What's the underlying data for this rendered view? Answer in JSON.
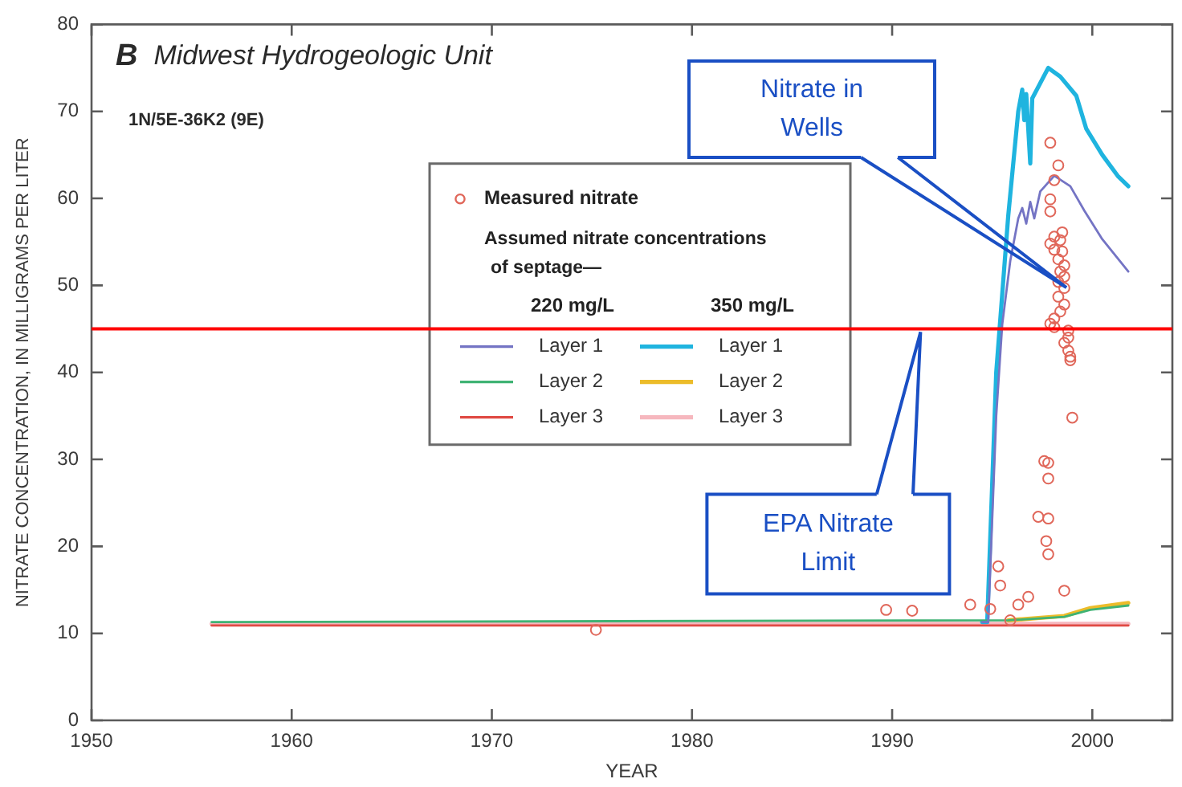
{
  "chart_data": {
    "type": "line",
    "title": "B Midwest Hydrogeologic Unit",
    "subtitle": "1N/5E-36K2 (9E)",
    "xlabel": "YEAR",
    "ylabel": "NITRATE CONCENTRATION, IN MILLIGRAMS PER LITER",
    "legend": "top",
    "legend_title": "Assumed nitrate concentrations of septage—",
    "annotations": [
      "220 mg/L",
      "350 mg/L",
      "Nitrate in Wells",
      "EPA Nitrate Limit"
    ],
    "xlim": [
      1950,
      2004
    ],
    "xticks": [
      1950,
      1960,
      1970,
      1980,
      1990,
      2000
    ],
    "ylim": [
      0,
      80
    ],
    "yticks": [
      0,
      10,
      20,
      30,
      40,
      50,
      60,
      70,
      80
    ],
    "ref_lines": [
      {
        "axis": "y",
        "value": 45,
        "color": "#ff0000"
      }
    ],
    "series": [
      {
        "name": "Measured nitrate",
        "type": "scatter",
        "marker": "circle",
        "color": "#e0675a",
        "x": [
          1975.2,
          1989.7,
          1991.0,
          1993.9,
          1994.9,
          1995.3,
          1995.4,
          1995.9,
          1996.3,
          1996.8,
          1998.6,
          1997.6,
          1997.8,
          1997.8,
          1997.3,
          1997.8,
          1997.7,
          1997.8,
          1999.0,
          1998.9,
          1997.9,
          1998.3,
          1998.1,
          1997.9,
          1997.9,
          1998.5,
          1998.1,
          1997.9,
          1998.4,
          1998.1,
          1998.5,
          1998.3,
          1998.6,
          1998.4,
          1998.6,
          1998.3,
          1998.6,
          1998.3,
          1998.6,
          1998.4,
          1998.1,
          1997.9,
          1998.1,
          1998.8,
          1998.8,
          1998.6,
          1998.8,
          1998.9
        ],
        "values": [
          10.4,
          12.7,
          12.6,
          13.3,
          12.8,
          17.7,
          15.5,
          11.5,
          13.3,
          14.2,
          14.9,
          29.8,
          29.6,
          27.8,
          23.4,
          23.2,
          20.6,
          19.1,
          34.8,
          41.4,
          66.4,
          63.8,
          62.1,
          59.9,
          58.5,
          56.1,
          55.6,
          54.8,
          55.2,
          54.1,
          53.9,
          53.0,
          52.3,
          51.6,
          51.0,
          50.4,
          49.7,
          48.7,
          47.8,
          47.0,
          46.2,
          45.6,
          45.2,
          44.8,
          44.0,
          43.4,
          42.5,
          41.8
        ]
      },
      {
        "name": "Layer 1",
        "color": "#7474c4",
        "x": [
          1994.5,
          1994.8,
          1995.2,
          1995.5,
          1995.9,
          1996.3,
          1996.5,
          1996.7,
          1996.9,
          1997.1,
          1997.4,
          1998.1,
          1998.9,
          1999.6,
          2000.5,
          2001.8
        ],
        "values": [
          11.3,
          11.3,
          35,
          45.5,
          52.8,
          57.7,
          58.9,
          57.1,
          59.6,
          57.7,
          60.8,
          62.6,
          61.4,
          58.6,
          55.3,
          51.6
        ]
      },
      {
        "name": "Layer 2",
        "color": "#3fb374",
        "x": [
          1956,
          1995.8,
          1998.6,
          1999.9,
          2001.8
        ],
        "values": [
          11.3,
          11.5,
          11.9,
          12.7,
          13.2
        ]
      },
      {
        "name": "Layer 3",
        "color": "#e04a44",
        "x": [
          1956,
          2001.8
        ],
        "values": [
          10.9,
          10.9
        ]
      },
      {
        "name": "Layer 1",
        "color": "#1fb4df",
        "x": [
          1994.5,
          1994.75,
          1995.2,
          1995.8,
          1996.3,
          1996.5,
          1996.6,
          1996.7,
          1996.9,
          1997.0,
          1997.8,
          1998.4,
          1999.2,
          1999.7,
          2000.5,
          2001.3,
          2001.8
        ],
        "values": [
          11.3,
          11.3,
          40,
          58,
          70,
          72.5,
          69,
          72,
          64,
          71.5,
          75,
          74,
          71.8,
          68,
          65,
          62.5,
          61.4
        ]
      },
      {
        "name": "Layer 2",
        "color": "#ecbc2a",
        "x": [
          1995.8,
          1998.6,
          1999.9,
          2001.8
        ],
        "values": [
          11.5,
          12.0,
          12.9,
          13.5
        ]
      },
      {
        "name": "Layer 3",
        "color": "#f6b7be",
        "x": [
          1956,
          2001.8
        ],
        "values": [
          11.1,
          11.1
        ]
      }
    ]
  }
}
